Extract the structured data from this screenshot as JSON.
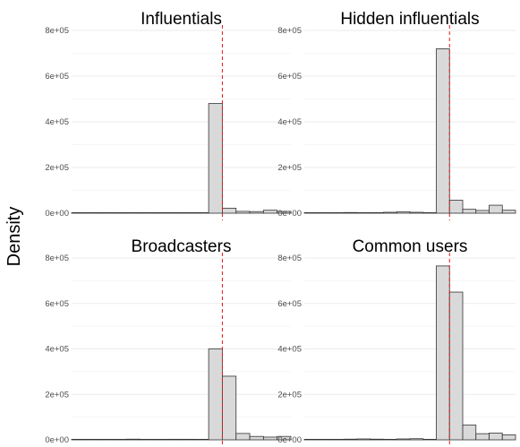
{
  "chart_data": {
    "type": "bar",
    "ylabel": "Density",
    "xlabel": "",
    "y_ticks": [
      "0e+00",
      "2e+05",
      "4e+05",
      "6e+05",
      "8e+05"
    ],
    "ylim": [
      0,
      800000
    ],
    "grid": true,
    "colors": {
      "bar_fill": "#d9d9d9",
      "bar_stroke": "#333333",
      "ref_line": "#e41a1c",
      "grid": "#ebebeb"
    },
    "reference_line": {
      "style": "dashed",
      "bin_index": 10
    },
    "facets": [
      {
        "title": "Influentials",
        "values": [
          1200,
          500,
          800,
          2000,
          1000,
          900,
          1500,
          2500,
          2500,
          1500,
          480000,
          22000,
          8000,
          7000,
          13000,
          8000
        ]
      },
      {
        "title": "Hidden influentials",
        "values": [
          1500,
          500,
          1000,
          3000,
          2000,
          2500,
          4000,
          6000,
          4000,
          1500,
          720000,
          57000,
          17000,
          12000,
          35000,
          13000
        ]
      },
      {
        "title": "Broadcasters",
        "values": [
          1000,
          500,
          500,
          2000,
          3000,
          1000,
          1500,
          2500,
          2500,
          1500,
          400000,
          280000,
          28000,
          15000,
          12000,
          15000
        ]
      },
      {
        "title": "Common users",
        "values": [
          1000,
          500,
          1000,
          3000,
          4000,
          3000,
          2000,
          4000,
          5000,
          2000,
          765000,
          650000,
          65000,
          27000,
          30000,
          22000
        ]
      }
    ]
  }
}
